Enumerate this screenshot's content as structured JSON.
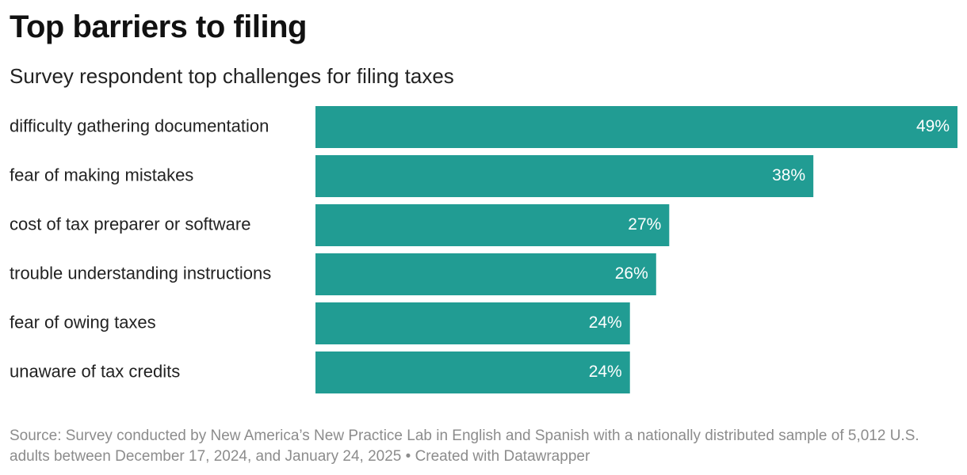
{
  "header": {
    "title": "Top barriers to filing",
    "subtitle": "Survey respondent top challenges for filing taxes"
  },
  "footer": {
    "source": "Source: Survey conducted by New America’s New Practice Lab in English and Spanish with a nationally distributed sample of 5,012 U.S. adults between December 17, 2024, and January 24, 2025",
    "separator": "•",
    "credit": "Created with Datawrapper"
  },
  "colors": {
    "bar": "#219c93",
    "value_label": "#ffffff"
  },
  "chart_data": {
    "type": "bar",
    "orientation": "horizontal",
    "title": "Top barriers to filing",
    "subtitle": "Survey respondent top challenges for filing taxes",
    "categories": [
      "difficulty gathering documentation",
      "fear of making mistakes",
      "cost of tax preparer or software",
      "trouble understanding instructions",
      "fear of owing taxes",
      "unaware of tax credits"
    ],
    "values": [
      49,
      38,
      27,
      26,
      24,
      24
    ],
    "value_labels": [
      "49%",
      "38%",
      "27%",
      "26%",
      "24%",
      "24%"
    ],
    "unit": "%",
    "xlim": [
      0,
      49
    ],
    "grid": false,
    "legend": "none"
  }
}
